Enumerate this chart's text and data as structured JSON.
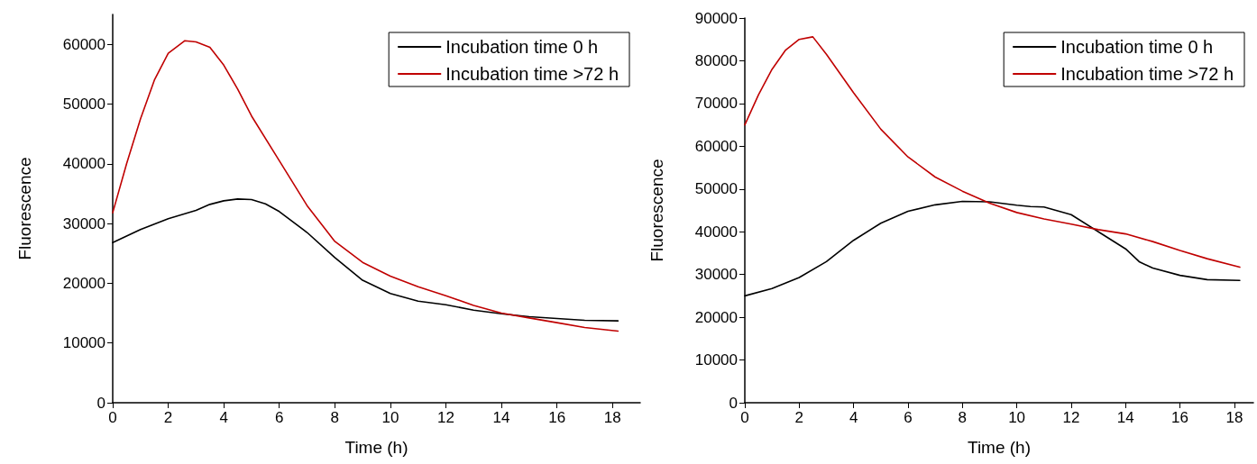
{
  "chart_data": [
    {
      "type": "line",
      "xlabel": "Time (h)",
      "ylabel": "Fluorescence",
      "xlim": [
        0,
        19
      ],
      "xticks": [
        0,
        2,
        4,
        6,
        8,
        10,
        12,
        14,
        16,
        18
      ],
      "ylim": [
        0,
        65000
      ],
      "yticks": [
        0,
        10000,
        20000,
        30000,
        40000,
        50000,
        60000
      ],
      "legend": "top right",
      "grid": false,
      "marker": "none",
      "line_style": "solid",
      "series": [
        {
          "name": "Incubation time 0 h",
          "color": "#000000",
          "x": [
            0,
            1,
            2,
            3,
            3.5,
            4,
            4.5,
            5,
            5.5,
            6,
            7,
            8,
            9,
            10,
            11,
            12,
            13,
            14,
            15,
            16,
            17,
            18.2
          ],
          "values": [
            26800,
            29000,
            30800,
            32200,
            33200,
            33800,
            34100,
            34000,
            33300,
            32000,
            28500,
            24300,
            20500,
            18300,
            17000,
            16400,
            15500,
            14900,
            14400,
            14100,
            13800,
            13700
          ]
        },
        {
          "name": "Incubation time >72 h",
          "color": "#c00000",
          "x": [
            0,
            0.5,
            1,
            1.5,
            2,
            2.6,
            3,
            3.5,
            4,
            4.5,
            5,
            6,
            7,
            8,
            9,
            10,
            11,
            12,
            13,
            14,
            15,
            16,
            17,
            18.2
          ],
          "values": [
            31800,
            40000,
            47500,
            54000,
            58500,
            60600,
            60400,
            59500,
            56500,
            52500,
            48000,
            40500,
            33000,
            27000,
            23500,
            21200,
            19400,
            17900,
            16300,
            15000,
            14200,
            13400,
            12600,
            12000
          ]
        }
      ]
    },
    {
      "type": "line",
      "xlabel": "Time (h)",
      "ylabel": "Fluorescence",
      "xlim": [
        0,
        18.7
      ],
      "xticks": [
        0,
        2,
        4,
        6,
        8,
        10,
        12,
        14,
        16,
        18
      ],
      "ylim": [
        0,
        90000
      ],
      "yticks": [
        0,
        10000,
        20000,
        30000,
        40000,
        50000,
        60000,
        70000,
        80000,
        90000
      ],
      "legend": "top right",
      "grid": false,
      "marker": "none",
      "line_style": "solid",
      "series": [
        {
          "name": "Incubation time 0 h",
          "color": "#000000",
          "x": [
            0,
            1,
            2,
            3,
            4,
            5,
            6,
            7,
            8,
            9,
            10,
            10.5,
            11,
            12,
            13,
            14,
            14.5,
            15,
            16,
            17,
            18.2
          ],
          "values": [
            25000,
            26700,
            29300,
            33000,
            38000,
            42000,
            44800,
            46300,
            47100,
            47000,
            46200,
            45900,
            45800,
            44000,
            40000,
            36000,
            33000,
            31500,
            29800,
            28800,
            28600
          ]
        },
        {
          "name": "Incubation time >72 h",
          "color": "#c00000",
          "x": [
            0,
            0.5,
            1,
            1.5,
            2,
            2.5,
            3,
            4,
            5,
            6,
            7,
            8,
            9,
            10,
            11,
            12,
            13,
            14,
            15,
            16,
            17,
            18.2
          ],
          "values": [
            65000,
            72000,
            78000,
            82500,
            85000,
            85600,
            81500,
            72500,
            64000,
            57500,
            52800,
            49500,
            46700,
            44500,
            43000,
            41800,
            40500,
            39500,
            37700,
            35600,
            33700,
            31700
          ]
        }
      ]
    }
  ]
}
